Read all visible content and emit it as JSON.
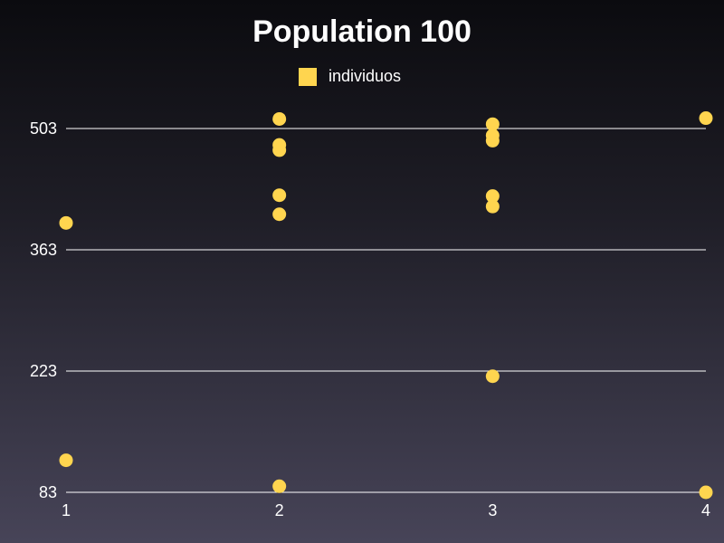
{
  "chart_data": {
    "type": "scatter",
    "title": "Population 100",
    "legend_position": "top-center",
    "grid": true,
    "xlim": [
      1,
      4
    ],
    "ylim": [
      83,
      503
    ],
    "x_ticks": [
      "1",
      "2",
      "3",
      "4"
    ],
    "y_ticks": [
      "83",
      "223",
      "363",
      "503"
    ],
    "series": [
      {
        "name": "individuos",
        "color": "#ffd54f",
        "points": [
          {
            "x": 1,
            "y": 394
          },
          {
            "x": 1,
            "y": 120
          },
          {
            "x": 2,
            "y": 514
          },
          {
            "x": 2,
            "y": 484
          },
          {
            "x": 2,
            "y": 478
          },
          {
            "x": 2,
            "y": 426
          },
          {
            "x": 2,
            "y": 404
          },
          {
            "x": 2,
            "y": 90
          },
          {
            "x": 3,
            "y": 508
          },
          {
            "x": 3,
            "y": 495
          },
          {
            "x": 3,
            "y": 489
          },
          {
            "x": 3,
            "y": 425
          },
          {
            "x": 3,
            "y": 413
          },
          {
            "x": 3,
            "y": 217
          },
          {
            "x": 4,
            "y": 515
          },
          {
            "x": 4,
            "y": 83
          }
        ]
      }
    ]
  }
}
